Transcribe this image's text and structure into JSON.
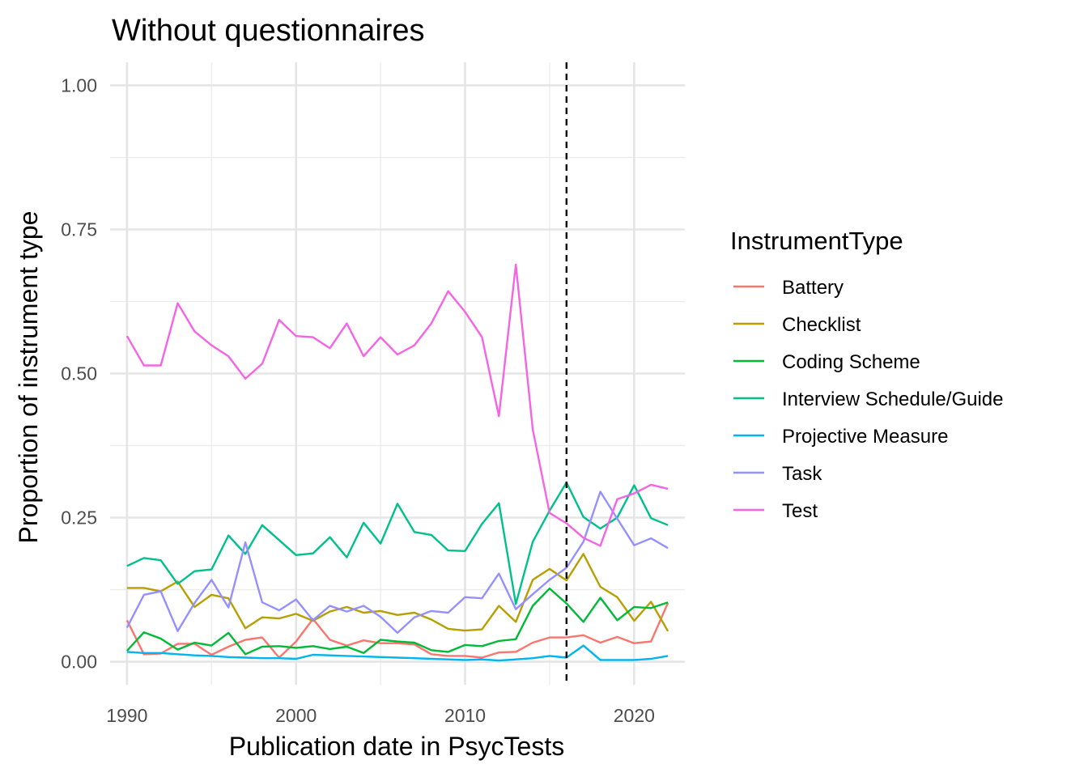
{
  "chart_data": {
    "type": "line",
    "title": "Without questionnaires",
    "xlabel": "Publication date in PsycTests",
    "ylabel": "Proportion of instrument type",
    "xlim": [
      1989,
      2023
    ],
    "ylim": [
      -0.04,
      1.04
    ],
    "x_ticks": [
      1990,
      2000,
      2010,
      2020
    ],
    "y_ticks": [
      0.0,
      0.25,
      0.5,
      0.75,
      1.0
    ],
    "y_tick_labels": [
      "0.00",
      "0.25",
      "0.50",
      "0.75",
      "1.00"
    ],
    "grid": true,
    "reference_line": {
      "x": 2016,
      "style": "dashed",
      "color": "#000000"
    },
    "legend": {
      "title": "InstrumentType",
      "position": "right"
    },
    "x": [
      1990,
      1991,
      1992,
      1993,
      1994,
      1995,
      1996,
      1997,
      1998,
      1999,
      2000,
      2001,
      2002,
      2003,
      2004,
      2005,
      2006,
      2007,
      2008,
      2009,
      2010,
      2011,
      2012,
      2013,
      2014,
      2015,
      2016,
      2017,
      2018,
      2019,
      2020,
      2021,
      2022
    ],
    "series": [
      {
        "name": "Battery",
        "color": "#F8766D",
        "values": [
          0.072,
          0.013,
          0.014,
          0.031,
          0.031,
          0.012,
          0.026,
          0.038,
          0.042,
          0.007,
          0.035,
          0.074,
          0.038,
          0.028,
          0.037,
          0.032,
          0.032,
          0.03,
          0.013,
          0.01,
          0.01,
          0.007,
          0.016,
          0.017,
          0.033,
          0.042,
          0.042,
          0.046,
          0.033,
          0.043,
          0.032,
          0.035,
          0.102
        ]
      },
      {
        "name": "Checklist",
        "color": "#B79F00",
        "values": [
          0.128,
          0.128,
          0.122,
          0.139,
          0.095,
          0.116,
          0.11,
          0.058,
          0.077,
          0.075,
          0.083,
          0.071,
          0.087,
          0.095,
          0.085,
          0.088,
          0.081,
          0.085,
          0.073,
          0.057,
          0.054,
          0.056,
          0.097,
          0.069,
          0.142,
          0.161,
          0.141,
          0.187,
          0.13,
          0.112,
          0.071,
          0.104,
          0.053
        ]
      },
      {
        "name": "Coding Scheme",
        "color": "#00BA38",
        "values": [
          0.019,
          0.051,
          0.04,
          0.021,
          0.033,
          0.028,
          0.05,
          0.013,
          0.026,
          0.027,
          0.024,
          0.027,
          0.022,
          0.026,
          0.015,
          0.038,
          0.035,
          0.033,
          0.02,
          0.017,
          0.029,
          0.027,
          0.036,
          0.039,
          0.097,
          0.127,
          0.101,
          0.069,
          0.111,
          0.072,
          0.095,
          0.093,
          0.103
        ]
      },
      {
        "name": "Interview Schedule/Guide",
        "color": "#00C08B",
        "values": [
          0.166,
          0.18,
          0.176,
          0.135,
          0.157,
          0.16,
          0.219,
          0.187,
          0.237,
          0.211,
          0.185,
          0.188,
          0.216,
          0.181,
          0.241,
          0.205,
          0.274,
          0.225,
          0.22,
          0.193,
          0.192,
          0.239,
          0.275,
          0.1,
          0.208,
          0.262,
          0.311,
          0.251,
          0.231,
          0.25,
          0.306,
          0.249,
          0.237
        ]
      },
      {
        "name": "Projective Measure",
        "color": "#00B4EF",
        "values": [
          0.017,
          0.015,
          0.015,
          0.013,
          0.011,
          0.01,
          0.008,
          0.007,
          0.006,
          0.006,
          0.005,
          0.012,
          0.011,
          0.01,
          0.009,
          0.008,
          0.007,
          0.006,
          0.005,
          0.004,
          0.003,
          0.004,
          0.002,
          0.004,
          0.006,
          0.01,
          0.007,
          0.028,
          0.003,
          0.003,
          0.003,
          0.005,
          0.01
        ]
      },
      {
        "name": "Task",
        "color": "#9590FF",
        "values": [
          0.059,
          0.116,
          0.122,
          0.053,
          0.102,
          0.142,
          0.094,
          0.207,
          0.103,
          0.089,
          0.108,
          0.072,
          0.097,
          0.087,
          0.097,
          0.078,
          0.05,
          0.077,
          0.088,
          0.085,
          0.112,
          0.11,
          0.153,
          0.091,
          0.117,
          0.142,
          0.163,
          0.208,
          0.295,
          0.248,
          0.202,
          0.214,
          0.197
        ]
      },
      {
        "name": "Test",
        "color": "#F564E3",
        "values": [
          0.565,
          0.514,
          0.514,
          0.622,
          0.573,
          0.549,
          0.53,
          0.491,
          0.517,
          0.593,
          0.565,
          0.563,
          0.544,
          0.587,
          0.53,
          0.563,
          0.533,
          0.549,
          0.587,
          0.643,
          0.607,
          0.563,
          0.426,
          0.689,
          0.403,
          0.258,
          0.24,
          0.215,
          0.201,
          0.282,
          0.292,
          0.307,
          0.3
        ]
      }
    ]
  }
}
